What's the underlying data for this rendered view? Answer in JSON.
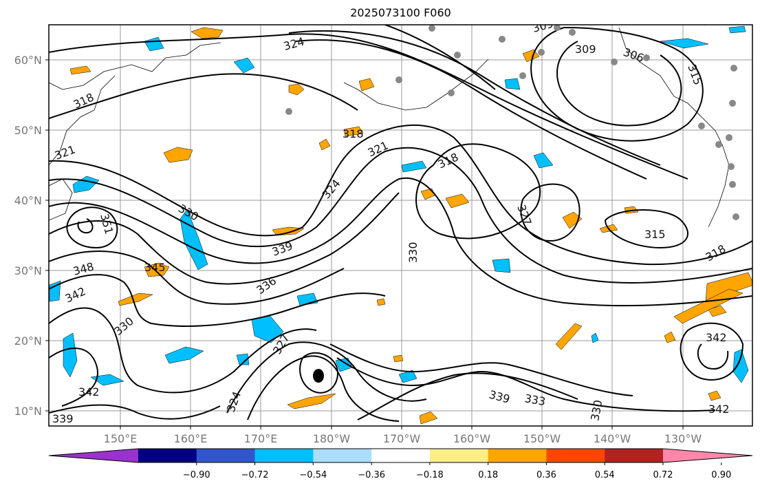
{
  "title": "2025073100 F060",
  "lat_labels": [
    "60°N",
    "50°N",
    "40°N",
    "30°N",
    "20°N",
    "10°N"
  ],
  "lon_labels": [
    "150°E",
    "160°E",
    "170°E",
    "180°W",
    "170°W",
    "160°W",
    "150°W",
    "140°W",
    "130°W"
  ],
  "colorbar": {
    "ticks": [
      "−0.90",
      "−0.72",
      "−0.54",
      "−0.36",
      "−0.18",
      "0.18",
      "0.36",
      "0.54",
      "0.72",
      "0.90"
    ],
    "colors": [
      "#9933cc",
      "#000080",
      "#3355cc",
      "#00bfff",
      "#aaddff",
      "#ffffff",
      "#ffee88",
      "#ffa500",
      "#ff4500",
      "#b22222",
      "#ff88aa"
    ]
  },
  "contour_labels": [
    "324",
    "318",
    "321",
    "318",
    "321",
    "318",
    "324",
    "327",
    "330",
    "339",
    "336",
    "351",
    "348",
    "345",
    "342",
    "330",
    "327",
    "342",
    "339",
    "324",
    "330",
    "339",
    "333",
    "330",
    "315",
    "318",
    "309",
    "306",
    "309",
    "315",
    "342",
    "342"
  ],
  "fill_colors": {
    "orange": "#ffa500",
    "yellow": "#ffee88",
    "cyan": "#00bfff",
    "lightblue": "#aaddff",
    "darkorange": "#ff8c00"
  }
}
